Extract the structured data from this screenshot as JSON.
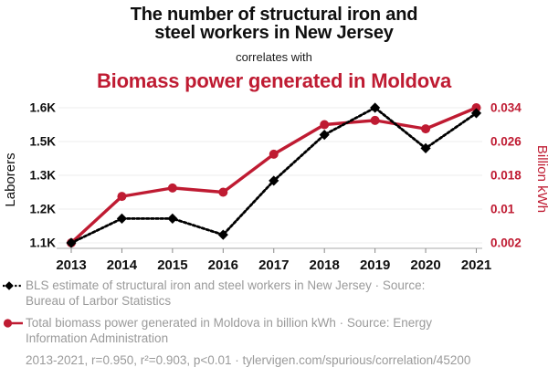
{
  "header": {
    "title_line1": "The number of structural iron and",
    "title_line2": "steel workers in New Jersey",
    "connector": "correlates with",
    "subtitle": "Biomass power generated in Moldova"
  },
  "colors": {
    "accent_red": "#bf1b32",
    "series_black": "#000000",
    "legend_gray": "#9a9a9a",
    "gridline": "#ececec",
    "axis_line": "#bbbbbb",
    "tick_mark": "#888888",
    "ink": "#0f0f0f"
  },
  "chart_data": {
    "type": "line",
    "x": [
      2013,
      2014,
      2015,
      2016,
      2017,
      2018,
      2019,
      2020,
      2021
    ],
    "x_tick_labels": [
      "2013",
      "2014",
      "2015",
      "2016",
      "2017",
      "2018",
      "2019",
      "2020",
      "2021"
    ],
    "grid": true,
    "legend_position": "bottom",
    "left_axis": {
      "label": "Laborers",
      "range": [
        1100,
        1600
      ],
      "tick_values": [
        1100,
        1225,
        1350,
        1475,
        1600
      ],
      "tick_labels": [
        "1.1K",
        "1.2K",
        "1.3K",
        "1.5K",
        "1.6K"
      ]
    },
    "right_axis": {
      "label": "Billion kWh",
      "range": [
        0.002,
        0.034
      ],
      "tick_values": [
        0.002,
        0.01,
        0.018,
        0.026,
        0.034
      ],
      "tick_labels": [
        "0.002",
        "0.01",
        "0.018",
        "0.026",
        "0.034"
      ]
    },
    "series": [
      {
        "name": "Total biomass power generated in Moldova in billion kWh",
        "axis": "right",
        "color": "#bf1b32",
        "line_style": "solid",
        "marker": "circle",
        "values": [
          0.002,
          0.013,
          0.015,
          0.014,
          0.023,
          0.03,
          0.031,
          0.029,
          0.034
        ]
      },
      {
        "name": "BLS estimate of structural iron and steel workers in New Jersey",
        "axis": "left",
        "color": "#000000",
        "line_style": "dashed",
        "marker": "diamond",
        "values": [
          1100,
          1190,
          1190,
          1130,
          1330,
          1500,
          1600,
          1450,
          1580
        ]
      }
    ]
  },
  "legend": {
    "items": [
      {
        "marker": "black-diamond-dashed",
        "lines": [
          "BLS estimate of structural iron and steel workers in New Jersey · Source:",
          "Bureau of Larbor Statistics"
        ]
      },
      {
        "marker": "red-circle-solid",
        "lines": [
          "Total biomass power generated in Moldova in billion kWh · Source: Energy",
          "Information Administration"
        ]
      }
    ],
    "footnote": "2013-2021, r=0.950, r²=0.903, p<0.01 · tylervigen.com/spurious/correlation/45200"
  }
}
